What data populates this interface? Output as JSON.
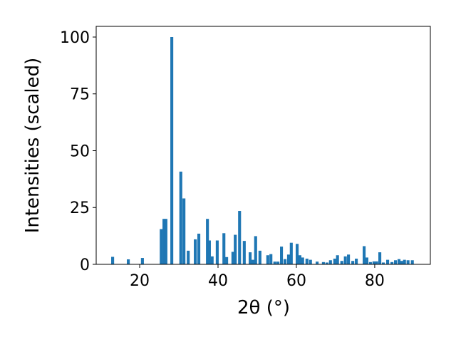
{
  "chart_data": {
    "type": "bar",
    "x": [
      13.1,
      17.1,
      20.7,
      25.5,
      26.2,
      26.7,
      28.2,
      30.5,
      31.3,
      32.4,
      34.2,
      35.1,
      37.3,
      37.8,
      38.5,
      39.8,
      41.5,
      42.2,
      43.8,
      44.4,
      45.5,
      46.7,
      48.2,
      48.9,
      49.6,
      50.7,
      52.7,
      53.5,
      54.5,
      55.3,
      56.2,
      57.1,
      58.0,
      58.7,
      60.2,
      60.9,
      61.6,
      62.7,
      63.6,
      65.3,
      66.9,
      67.8,
      68.7,
      69.8,
      70.5,
      71.6,
      72.5,
      73.3,
      74.4,
      75.3,
      77.3,
      78.0,
      78.9,
      79.8,
      80.5,
      81.3,
      82.2,
      83.3,
      84.4,
      85.3,
      86.2,
      86.9,
      87.6,
      88.5,
      89.6
    ],
    "values": [
      3.3,
      2.2,
      2.8,
      15.5,
      20,
      20,
      100,
      40.8,
      29,
      6,
      11,
      13.5,
      20,
      10.5,
      3.5,
      10.5,
      13.7,
      3.2,
      5.5,
      13,
      23.5,
      10.3,
      5.3,
      2,
      12.4,
      6,
      4,
      4.5,
      1.2,
      1.2,
      7.8,
      2.3,
      4.3,
      9.5,
      9,
      4,
      3,
      2.5,
      2,
      1.2,
      1,
      0.8,
      1.8,
      2.5,
      4,
      1.5,
      3.5,
      4.3,
      1.5,
      2.5,
      8,
      3,
      1,
      1.3,
      1.3,
      5.3,
      0.8,
      2,
      1,
      1.8,
      2.3,
      1.5,
      2,
      1.8,
      1.8
    ],
    "color": "#1f77b4",
    "x_label": "2θ (°)",
    "y_label": "Intensities (scaled)",
    "xlim": [
      8.9,
      94.2
    ],
    "xticks": [
      20,
      40,
      60,
      80
    ],
    "ylim": [
      0,
      104.7
    ],
    "yticks": [
      0,
      25,
      50,
      75,
      100
    ]
  }
}
